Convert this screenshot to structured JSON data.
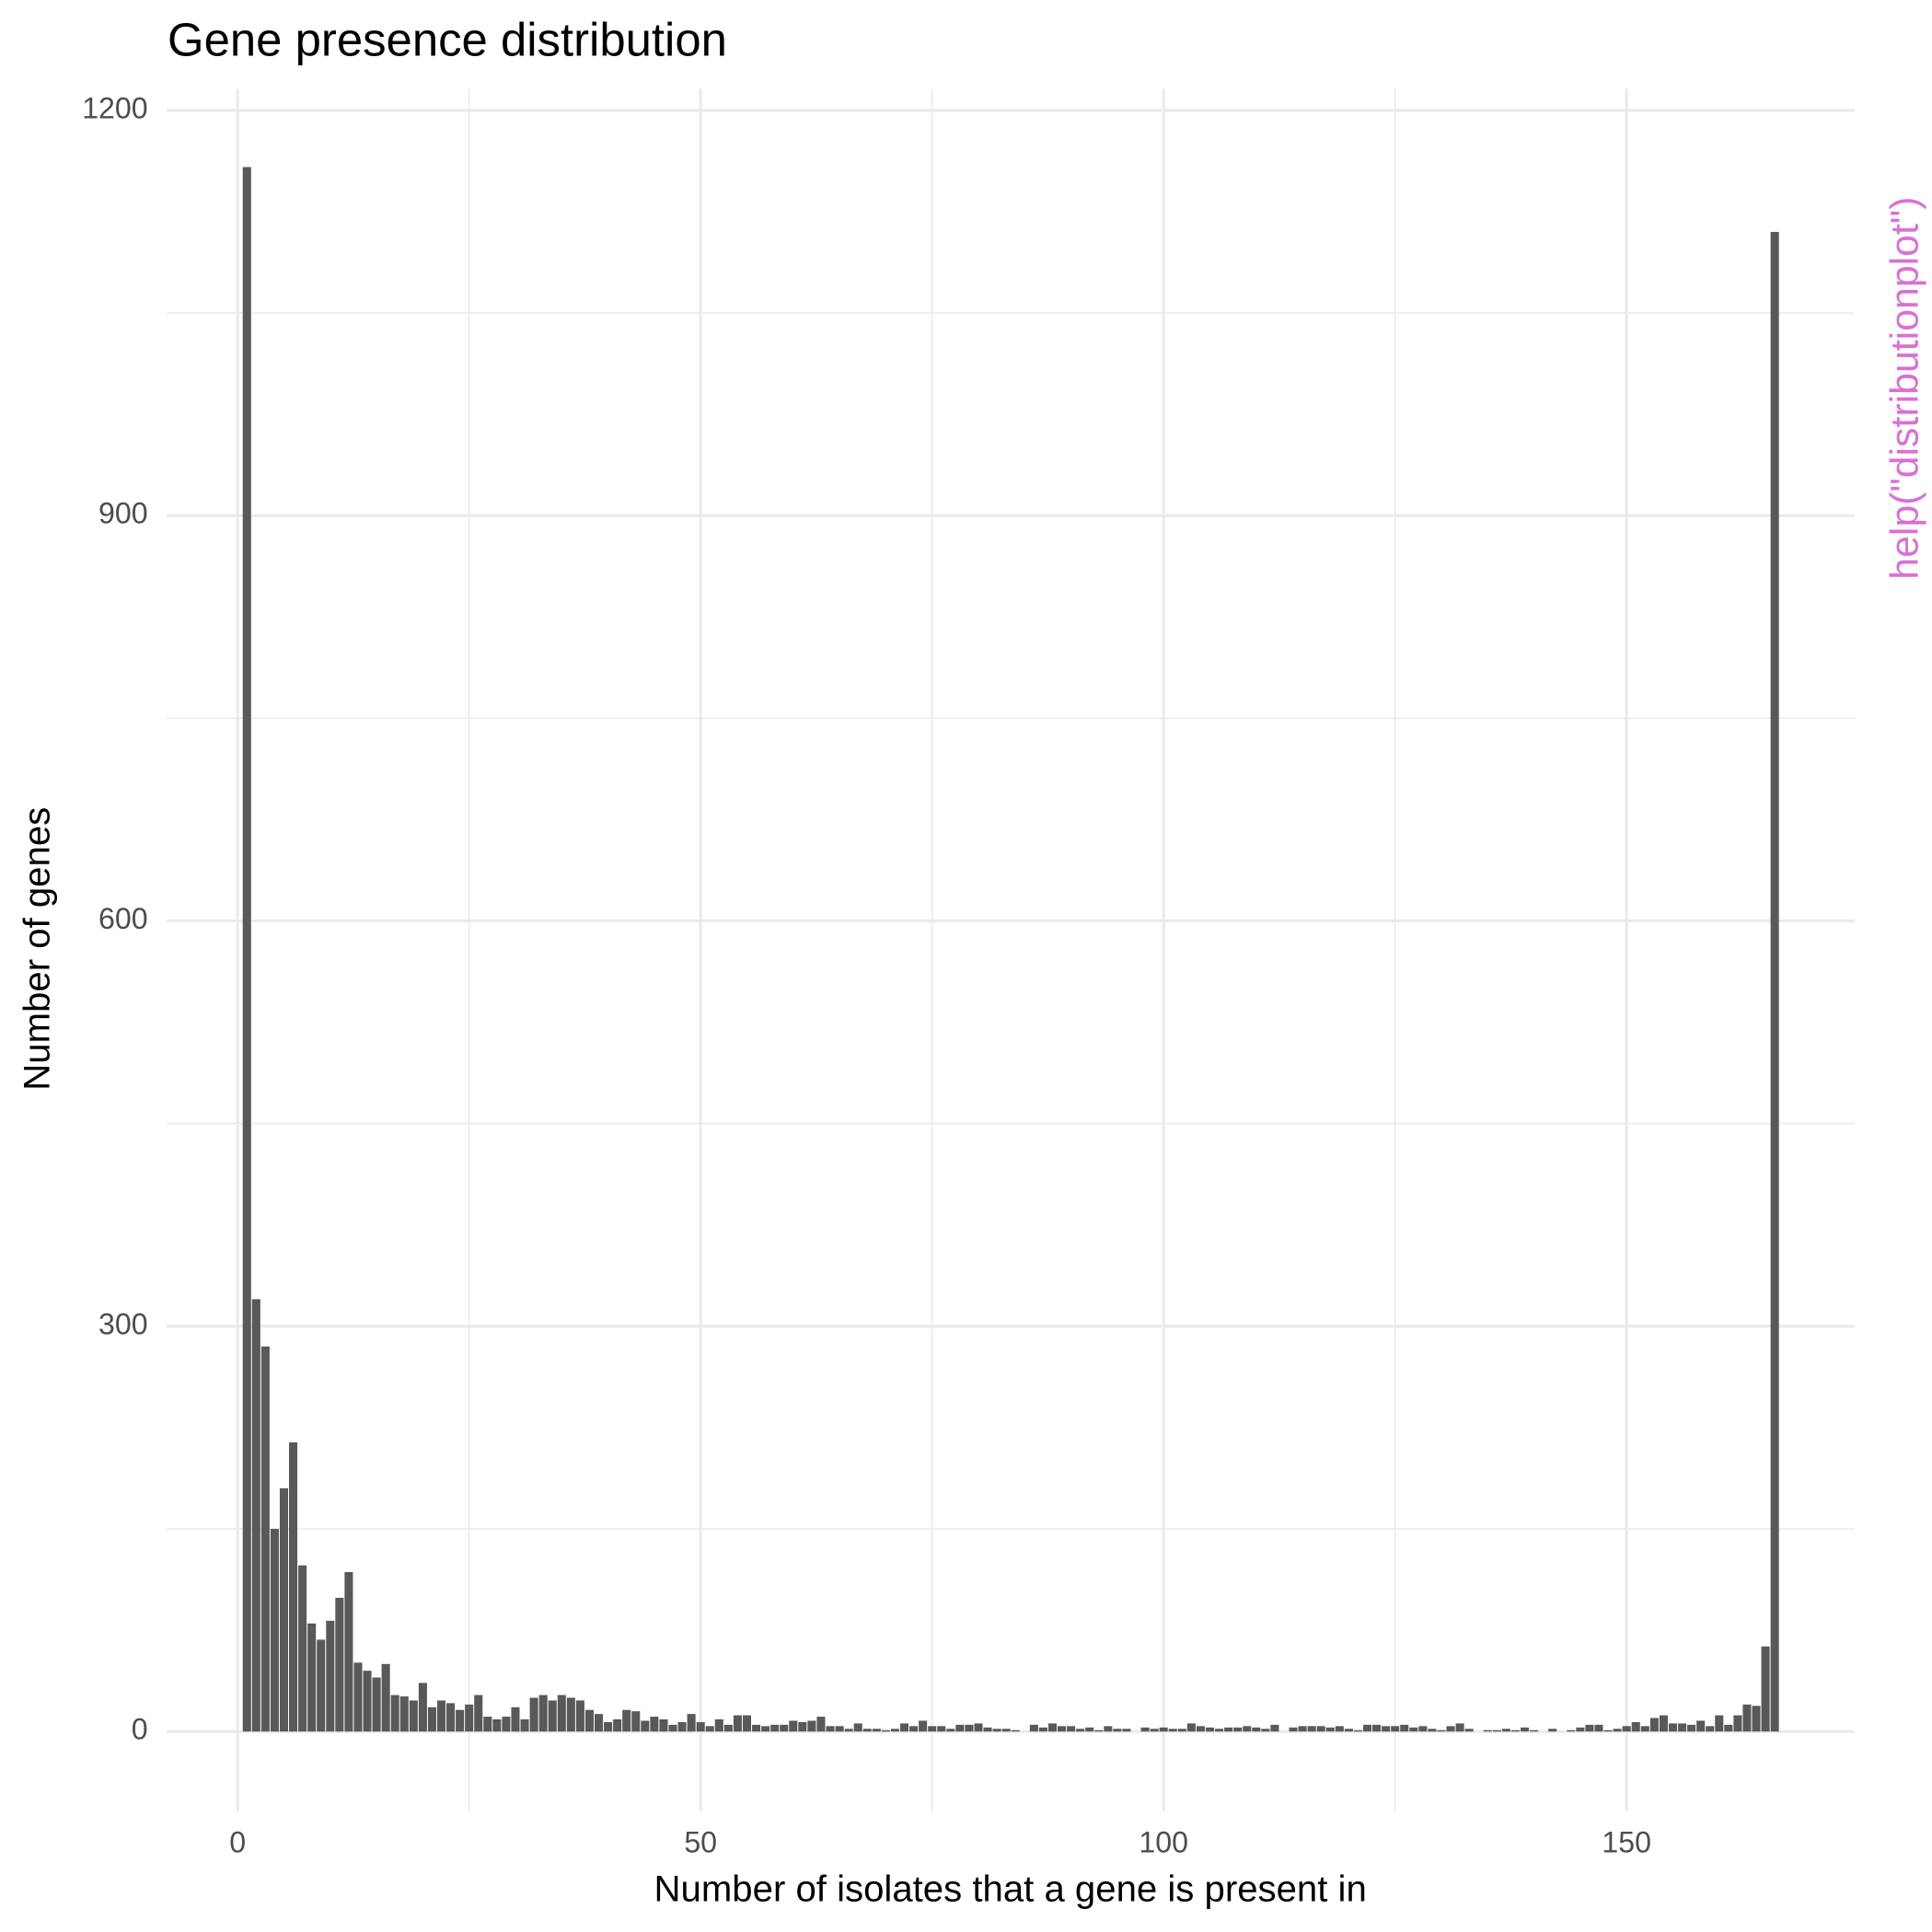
{
  "chart_data": {
    "type": "bar",
    "title": "Gene presence distribution",
    "x_label": "Number of isolates that a gene is present in",
    "y_label": "Number of genes",
    "annotation": "help(\"distributionplot\")",
    "color": "#595959",
    "annotation_color": "#da70d6",
    "grid": true,
    "x": [
      1,
      2,
      3,
      4,
      5,
      6,
      7,
      8,
      9,
      10,
      11,
      12,
      13,
      14,
      15,
      16,
      17,
      18,
      19,
      20,
      21,
      22,
      23,
      24,
      25,
      26,
      27,
      28,
      29,
      30,
      31,
      32,
      33,
      34,
      35,
      36,
      37,
      38,
      39,
      40,
      41,
      42,
      43,
      44,
      45,
      46,
      47,
      48,
      49,
      50,
      51,
      52,
      53,
      54,
      55,
      56,
      57,
      58,
      59,
      60,
      61,
      62,
      63,
      64,
      65,
      66,
      67,
      68,
      69,
      70,
      71,
      72,
      73,
      74,
      75,
      76,
      77,
      78,
      79,
      80,
      81,
      82,
      83,
      84,
      85,
      86,
      87,
      88,
      89,
      90,
      91,
      92,
      93,
      94,
      95,
      96,
      97,
      98,
      99,
      100,
      101,
      102,
      103,
      104,
      105,
      106,
      107,
      108,
      109,
      110,
      111,
      112,
      113,
      114,
      115,
      116,
      117,
      118,
      119,
      120,
      121,
      122,
      123,
      124,
      125,
      126,
      127,
      128,
      129,
      130,
      131,
      132,
      133,
      134,
      135,
      136,
      137,
      138,
      139,
      140,
      141,
      142,
      143,
      144,
      145,
      146,
      147,
      148,
      149,
      150,
      151,
      152,
      153,
      154,
      155,
      156,
      157,
      158,
      159,
      160,
      161,
      162,
      163,
      164,
      165,
      166
    ],
    "values": [
      1158,
      320,
      285,
      150,
      180,
      214,
      123,
      80,
      68,
      82,
      99,
      118,
      51,
      45,
      40,
      50,
      27,
      26,
      23,
      36,
      18,
      23,
      21,
      16,
      20,
      27,
      11,
      9,
      11,
      18,
      9,
      25,
      27,
      23,
      27,
      25,
      23,
      16,
      13,
      7,
      9,
      16,
      15,
      8,
      11,
      9,
      5,
      7,
      13,
      7,
      4,
      9,
      5,
      12,
      12,
      5,
      4,
      5,
      5,
      8,
      7,
      8,
      11,
      4,
      4,
      2,
      6,
      2,
      2,
      1,
      2,
      6,
      4,
      8,
      4,
      4,
      2,
      5,
      5,
      6,
      3,
      2,
      2,
      1,
      0,
      5,
      3,
      6,
      4,
      4,
      2,
      3,
      1,
      4,
      2,
      2,
      0,
      3,
      2,
      3,
      2,
      2,
      6,
      4,
      3,
      2,
      3,
      3,
      4,
      3,
      2,
      5,
      0,
      3,
      4,
      4,
      4,
      3,
      4,
      2,
      1,
      5,
      5,
      4,
      4,
      5,
      3,
      4,
      2,
      1,
      4,
      6,
      2,
      0,
      1,
      1,
      2,
      1,
      3,
      1,
      0,
      2,
      0,
      1,
      3,
      5,
      5,
      1,
      2,
      4,
      7,
      4,
      10,
      12,
      6,
      6,
      5,
      8,
      4,
      12,
      5,
      12,
      20,
      19,
      63,
      1110
    ],
    "xlim": [
      -7.7,
      174.6
    ],
    "ylim": [
      -59,
      1216
    ],
    "xticks": [
      0,
      50,
      100,
      150
    ],
    "yticks": [
      0,
      300,
      600,
      900,
      1200
    ],
    "xminorticks": [
      25,
      75,
      125
    ],
    "yminorticks": [
      150,
      450,
      750,
      1050
    ]
  }
}
